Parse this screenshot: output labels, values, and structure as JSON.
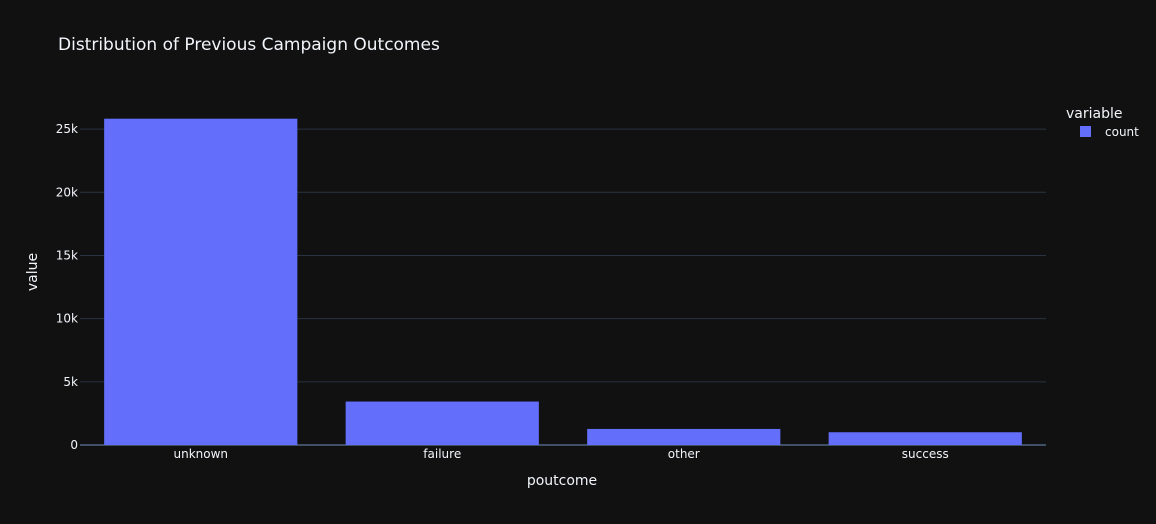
{
  "chart_data": {
    "type": "bar",
    "title": "Distribution of Previous Campaign Outcomes",
    "xlabel": "poutcome",
    "ylabel": "value",
    "categories": [
      "unknown",
      "failure",
      "other",
      "success"
    ],
    "series": [
      {
        "name": "count",
        "values": [
          25820,
          3440,
          1270,
          1010
        ],
        "color": "#636efa"
      }
    ],
    "ylim": [
      0,
      27300
    ],
    "yticks": [
      0,
      5000,
      10000,
      15000,
      20000,
      25000
    ],
    "ytick_labels": [
      "0",
      "5k",
      "10k",
      "15k",
      "20k",
      "25k"
    ],
    "legend": {
      "title": "variable",
      "placement": "top-right"
    },
    "grid": true,
    "colors": {
      "background": "#111111",
      "grid": "#283442",
      "text": "#f2f5fa"
    }
  }
}
